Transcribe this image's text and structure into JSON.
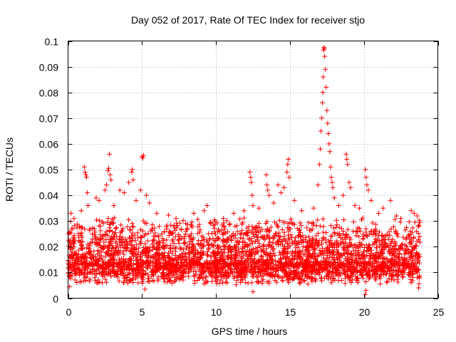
{
  "chart_data": {
    "type": "scatter",
    "title": "Day 052 of 2017, Rate Of TEC Index for receiver stjo",
    "xlabel": "GPS time / hours",
    "ylabel": "ROTI / TECUs",
    "xlim": [
      0,
      25
    ],
    "ylim": [
      0,
      0.1
    ],
    "xticks": [
      0,
      5,
      10,
      15,
      20,
      25
    ],
    "xtick_labels": [
      "0",
      "5",
      "10",
      "15",
      "20",
      "25"
    ],
    "yticks": [
      0,
      0.01,
      0.02,
      0.03,
      0.04,
      0.05,
      0.06,
      0.07,
      0.08,
      0.09,
      0.1
    ],
    "ytick_labels": [
      "0",
      "0.01",
      "0.02",
      "0.03",
      "0.04",
      "0.05",
      "0.06",
      "0.07",
      "0.08",
      "0.09",
      "0.1"
    ],
    "grid": true,
    "marker": "plus",
    "color": "#ff0000",
    "series": [
      {
        "name": "ROTI",
        "dense_band": {
          "x_range": [
            0,
            23.8
          ],
          "typical_range": [
            0.005,
            0.03
          ],
          "median": 0.014
        },
        "points": [
          [
            0.2,
            0.033
          ],
          [
            0.4,
            0.031
          ],
          [
            0.9,
            0.034
          ],
          [
            1.1,
            0.051
          ],
          [
            1.15,
            0.049
          ],
          [
            1.2,
            0.048
          ],
          [
            1.25,
            0.047
          ],
          [
            1.3,
            0.041
          ],
          [
            1.35,
            0.036
          ],
          [
            1.9,
            0.039
          ],
          [
            2.1,
            0.038
          ],
          [
            2.5,
            0.042
          ],
          [
            2.6,
            0.044
          ],
          [
            2.7,
            0.0495
          ],
          [
            2.75,
            0.0505
          ],
          [
            2.8,
            0.056
          ],
          [
            2.85,
            0.048
          ],
          [
            2.9,
            0.046
          ],
          [
            3.1,
            0.036
          ],
          [
            3.5,
            0.042
          ],
          [
            3.8,
            0.041
          ],
          [
            4.1,
            0.045
          ],
          [
            4.3,
            0.049
          ],
          [
            4.35,
            0.05
          ],
          [
            4.4,
            0.046
          ],
          [
            4.6,
            0.038
          ],
          [
            4.9,
            0.042
          ],
          [
            5.0,
            0.055
          ],
          [
            5.05,
            0.0545
          ],
          [
            5.1,
            0.0555
          ],
          [
            5.3,
            0.04
          ],
          [
            5.5,
            0.037
          ],
          [
            6.0,
            0.033
          ],
          [
            7.3,
            0.031
          ],
          [
            8.5,
            0.033
          ],
          [
            9.2,
            0.034
          ],
          [
            9.4,
            0.036
          ],
          [
            10.5,
            0.031
          ],
          [
            11.2,
            0.033
          ],
          [
            11.9,
            0.034
          ],
          [
            12.3,
            0.049
          ],
          [
            12.35,
            0.047
          ],
          [
            12.4,
            0.045
          ],
          [
            12.45,
            0.04
          ],
          [
            12.5,
            0.036
          ],
          [
            12.9,
            0.035
          ],
          [
            13.4,
            0.048
          ],
          [
            13.45,
            0.044
          ],
          [
            13.5,
            0.042
          ],
          [
            13.6,
            0.04
          ],
          [
            13.9,
            0.037
          ],
          [
            14.2,
            0.044
          ],
          [
            14.4,
            0.041
          ],
          [
            14.6,
            0.043
          ],
          [
            14.8,
            0.049
          ],
          [
            14.85,
            0.052
          ],
          [
            14.9,
            0.054
          ],
          [
            14.95,
            0.047
          ],
          [
            15.3,
            0.038
          ],
          [
            15.8,
            0.034
          ],
          [
            16.6,
            0.035
          ],
          [
            16.9,
            0.044
          ],
          [
            17.0,
            0.052
          ],
          [
            17.05,
            0.058
          ],
          [
            17.1,
            0.065
          ],
          [
            17.15,
            0.07
          ],
          [
            17.2,
            0.076
          ],
          [
            17.22,
            0.08
          ],
          [
            17.25,
            0.086
          ],
          [
            17.27,
            0.0965
          ],
          [
            17.3,
            0.0975
          ],
          [
            17.33,
            0.097
          ],
          [
            17.35,
            0.094
          ],
          [
            17.4,
            0.089
          ],
          [
            17.45,
            0.082
          ],
          [
            17.5,
            0.073
          ],
          [
            17.55,
            0.068
          ],
          [
            17.6,
            0.064
          ],
          [
            17.65,
            0.06
          ],
          [
            17.7,
            0.057
          ],
          [
            17.75,
            0.051
          ],
          [
            17.8,
            0.047
          ],
          [
            17.85,
            0.045
          ],
          [
            17.9,
            0.043
          ],
          [
            18.0,
            0.039
          ],
          [
            18.3,
            0.036
          ],
          [
            18.6,
            0.04
          ],
          [
            18.8,
            0.056
          ],
          [
            18.85,
            0.054
          ],
          [
            18.9,
            0.052
          ],
          [
            19.0,
            0.045
          ],
          [
            19.1,
            0.043
          ],
          [
            19.4,
            0.036
          ],
          [
            19.7,
            0.035
          ],
          [
            20.1,
            0.05
          ],
          [
            20.15,
            0.047
          ],
          [
            20.2,
            0.044
          ],
          [
            20.3,
            0.042
          ],
          [
            20.5,
            0.038
          ],
          [
            21.0,
            0.033
          ],
          [
            21.3,
            0.035
          ],
          [
            21.8,
            0.038
          ],
          [
            22.2,
            0.032
          ],
          [
            22.5,
            0.031
          ],
          [
            23.2,
            0.034
          ],
          [
            23.4,
            0.033
          ],
          [
            23.6,
            0.032
          ],
          [
            20.1,
            0.0015
          ],
          [
            20.15,
            0.003
          ],
          [
            12.5,
            0.0025
          ],
          [
            5.2,
            0.0035
          ],
          [
            0.1,
            0.0045
          ],
          [
            23.7,
            0.004
          ]
        ]
      }
    ]
  }
}
